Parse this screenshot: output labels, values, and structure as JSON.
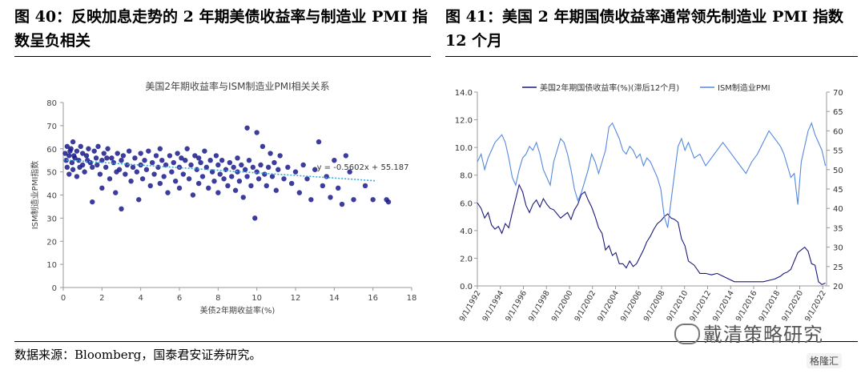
{
  "left_figure": {
    "title": "图 40：反映加息走势的 2 年期美债收益率与制造业 PMI 指数呈负相关"
  },
  "right_figure": {
    "title": "图 41：美国 2 年期国债收益率通常领先制造业 PMI 指数 12 个月"
  },
  "source": "数据来源：Bloomberg，国泰君安证券研究。",
  "watermark": "戴清策略研究",
  "corner_badge": "格隆汇",
  "chart_data": [
    {
      "type": "scatter",
      "title": "美国2年期收益率与ISM制造业PMI相关关系",
      "xlabel": "美债2年期收益率(%)",
      "ylabel": "ISM制造业PMI指数",
      "xlim": [
        0,
        18
      ],
      "ylim": [
        0,
        80
      ],
      "xticks": [
        0,
        2,
        4,
        6,
        8,
        10,
        12,
        14,
        16,
        18
      ],
      "yticks": [
        0,
        10,
        20,
        30,
        40,
        50,
        60,
        70,
        80
      ],
      "grid": false,
      "trendline": {
        "slope": -0.5602,
        "intercept": 55.187,
        "label": "y = -0.5602x + 55.187"
      },
      "point_color": "#1a1a8c",
      "points": [
        [
          0.1,
          58
        ],
        [
          0.15,
          55
        ],
        [
          0.2,
          61
        ],
        [
          0.2,
          52
        ],
        [
          0.3,
          57
        ],
        [
          0.3,
          49
        ],
        [
          0.4,
          60
        ],
        [
          0.45,
          54
        ],
        [
          0.5,
          63
        ],
        [
          0.5,
          51
        ],
        [
          0.6,
          56
        ],
        [
          0.7,
          59
        ],
        [
          0.7,
          48
        ],
        [
          0.8,
          55
        ],
        [
          0.9,
          61
        ],
        [
          1.0,
          53
        ],
        [
          1.0,
          58
        ],
        [
          1.1,
          50
        ],
        [
          1.2,
          57
        ],
        [
          1.3,
          60
        ],
        [
          1.4,
          54
        ],
        [
          1.5,
          52
        ],
        [
          1.5,
          37
        ],
        [
          1.6,
          59
        ],
        [
          1.7,
          56
        ],
        [
          1.8,
          61
        ],
        [
          1.9,
          49
        ],
        [
          2.0,
          55
        ],
        [
          2.0,
          43
        ],
        [
          2.1,
          58
        ],
        [
          2.2,
          52
        ],
        [
          2.3,
          60
        ],
        [
          2.4,
          47
        ],
        [
          2.5,
          56
        ],
        [
          2.6,
          54
        ],
        [
          2.7,
          41
        ],
        [
          2.8,
          58
        ],
        [
          2.9,
          51
        ],
        [
          3.0,
          55
        ],
        [
          3.0,
          34
        ],
        [
          3.1,
          57
        ],
        [
          3.2,
          49
        ],
        [
          3.3,
          53
        ],
        [
          3.4,
          59
        ],
        [
          3.5,
          46
        ],
        [
          3.6,
          52
        ],
        [
          3.7,
          56
        ],
        [
          3.8,
          50
        ],
        [
          3.9,
          38
        ],
        [
          4.0,
          58
        ],
        [
          4.0,
          53
        ],
        [
          4.1,
          47
        ],
        [
          4.2,
          55
        ],
        [
          4.3,
          51
        ],
        [
          4.4,
          59
        ],
        [
          4.5,
          44
        ],
        [
          4.6,
          54
        ],
        [
          4.7,
          49
        ],
        [
          4.8,
          57
        ],
        [
          4.9,
          52
        ],
        [
          5.0,
          45
        ],
        [
          5.0,
          60
        ],
        [
          5.1,
          55
        ],
        [
          5.2,
          48
        ],
        [
          5.3,
          53
        ],
        [
          5.4,
          41
        ],
        [
          5.5,
          57
        ],
        [
          5.6,
          50
        ],
        [
          5.7,
          54
        ],
        [
          5.8,
          46
        ],
        [
          5.9,
          58
        ],
        [
          6.0,
          52
        ],
        [
          6.0,
          43
        ],
        [
          6.1,
          56
        ],
        [
          6.2,
          49
        ],
        [
          6.3,
          55
        ],
        [
          6.4,
          60
        ],
        [
          6.5,
          47
        ],
        [
          6.6,
          53
        ],
        [
          6.7,
          40
        ],
        [
          6.8,
          57
        ],
        [
          6.9,
          51
        ],
        [
          7.0,
          45
        ],
        [
          7.0,
          56
        ],
        [
          7.1,
          54
        ],
        [
          7.2,
          48
        ],
        [
          7.3,
          59
        ],
        [
          7.4,
          52
        ],
        [
          7.5,
          43
        ],
        [
          7.6,
          55
        ],
        [
          7.7,
          50
        ],
        [
          7.8,
          46
        ],
        [
          7.9,
          57
        ],
        [
          8.0,
          53
        ],
        [
          8.0,
          41
        ],
        [
          8.1,
          49
        ],
        [
          8.2,
          55
        ],
        [
          8.3,
          47
        ],
        [
          8.4,
          51
        ],
        [
          8.5,
          44
        ],
        [
          8.6,
          54
        ],
        [
          8.7,
          48
        ],
        [
          8.8,
          52
        ],
        [
          8.9,
          42
        ],
        [
          9.0,
          56
        ],
        [
          9.0,
          50
        ],
        [
          9.1,
          46
        ],
        [
          9.2,
          53
        ],
        [
          9.3,
          39
        ],
        [
          9.4,
          51
        ],
        [
          9.5,
          69
        ],
        [
          9.5,
          48
        ],
        [
          9.6,
          55
        ],
        [
          9.7,
          44
        ],
        [
          9.8,
          52
        ],
        [
          9.9,
          30
        ],
        [
          10.0,
          50
        ],
        [
          10.0,
          67
        ],
        [
          10.1,
          47
        ],
        [
          10.2,
          53
        ],
        [
          10.3,
          61
        ],
        [
          10.4,
          49
        ],
        [
          10.5,
          44
        ],
        [
          10.6,
          52
        ],
        [
          10.7,
          58
        ],
        [
          10.8,
          48
        ],
        [
          10.9,
          54
        ],
        [
          11.0,
          42
        ],
        [
          11.1,
          51
        ],
        [
          11.2,
          57
        ],
        [
          11.4,
          47
        ],
        [
          11.6,
          52
        ],
        [
          11.8,
          45
        ],
        [
          12.0,
          50
        ],
        [
          12.2,
          41
        ],
        [
          12.4,
          53
        ],
        [
          12.6,
          47
        ],
        [
          12.8,
          38
        ],
        [
          13.0,
          51
        ],
        [
          13.2,
          63
        ],
        [
          13.4,
          44
        ],
        [
          13.6,
          48
        ],
        [
          13.8,
          39
        ],
        [
          14.0,
          55
        ],
        [
          14.2,
          43
        ],
        [
          14.4,
          36
        ],
        [
          14.6,
          57
        ],
        [
          14.8,
          50
        ],
        [
          15.0,
          38
        ],
        [
          15.6,
          44
        ],
        [
          16.0,
          38
        ],
        [
          16.7,
          38
        ],
        [
          16.8,
          37
        ],
        [
          0.35,
          59
        ],
        [
          0.55,
          57
        ],
        [
          0.85,
          52
        ],
        [
          1.25,
          55
        ],
        [
          1.75,
          53
        ],
        [
          2.25,
          56
        ],
        [
          2.75,
          50
        ]
      ]
    },
    {
      "type": "line",
      "legend_position": "top",
      "x_tick_labels": [
        "9/1/1992",
        "9/1/1994",
        "9/1/1996",
        "9/1/1998",
        "9/1/2000",
        "9/1/2002",
        "9/1/2004",
        "9/1/2006",
        "9/1/2008",
        "9/1/2010",
        "9/1/2012",
        "9/1/2014",
        "9/1/2016",
        "9/1/2018",
        "9/1/2020",
        "9/1/2022"
      ],
      "xlim": [
        1992.67,
        2023.0
      ],
      "y_left": {
        "min": 0,
        "max": 14,
        "ticks": [
          "0.0",
          "2.0",
          "4.0",
          "6.0",
          "8.0",
          "10.0",
          "12.0",
          "14.0"
        ]
      },
      "y_right": {
        "min": 20,
        "max": 70,
        "ticks": [
          "20",
          "25",
          "30",
          "35",
          "40",
          "45",
          "50",
          "55",
          "60",
          "65",
          "70"
        ]
      },
      "series": [
        {
          "name": "美国2年期国债收益率(%)(滞后12个月)",
          "axis": "left",
          "color": "#1a1a7a",
          "x": [
            1992.67,
            1993.0,
            1993.3,
            1993.6,
            1993.9,
            1994.2,
            1994.5,
            1994.8,
            1995.1,
            1995.4,
            1995.7,
            1996.0,
            1996.3,
            1996.6,
            1996.9,
            1997.2,
            1997.5,
            1997.8,
            1998.1,
            1998.4,
            1998.7,
            1999.0,
            1999.3,
            1999.6,
            1999.9,
            2000.2,
            2000.5,
            2000.8,
            2001.1,
            2001.4,
            2001.7,
            2002.0,
            2002.3,
            2002.6,
            2002.9,
            2003.2,
            2003.5,
            2003.8,
            2004.1,
            2004.4,
            2004.7,
            2005.0,
            2005.3,
            2005.6,
            2005.9,
            2006.2,
            2006.5,
            2006.8,
            2007.1,
            2007.4,
            2007.7,
            2008.0,
            2008.3,
            2008.6,
            2008.9,
            2009.2,
            2009.5,
            2009.8,
            2010.1,
            2010.4,
            2010.7,
            2011.0,
            2011.5,
            2012.0,
            2012.5,
            2013.0,
            2013.5,
            2014.0,
            2014.5,
            2015.0,
            2015.5,
            2016.0,
            2016.5,
            2017.0,
            2017.5,
            2018.0,
            2018.5,
            2019.0,
            2019.3,
            2019.6,
            2019.9,
            2020.2,
            2020.5,
            2020.8,
            2021.1,
            2021.4,
            2021.7,
            2022.0,
            2022.3,
            2022.6,
            2022.9
          ],
          "y": [
            6.0,
            5.6,
            4.9,
            5.3,
            4.4,
            4.1,
            4.3,
            3.8,
            4.5,
            4.2,
            5.3,
            6.3,
            7.3,
            6.8,
            5.8,
            5.3,
            5.9,
            6.2,
            5.7,
            6.3,
            5.9,
            5.6,
            5.5,
            5.2,
            4.9,
            5.1,
            5.3,
            4.8,
            5.5,
            5.9,
            6.6,
            6.8,
            6.2,
            5.7,
            5.0,
            4.2,
            3.8,
            2.6,
            2.9,
            2.2,
            2.4,
            1.6,
            1.6,
            1.3,
            1.8,
            1.4,
            1.6,
            2.1,
            2.6,
            3.2,
            3.6,
            4.1,
            4.5,
            4.7,
            5.0,
            5.2,
            4.9,
            4.8,
            4.6,
            3.4,
            2.9,
            1.8,
            1.5,
            0.9,
            0.9,
            0.8,
            0.9,
            0.7,
            0.5,
            0.3,
            0.3,
            0.3,
            0.3,
            0.3,
            0.3,
            0.4,
            0.5,
            0.7,
            0.9,
            1.0,
            1.2,
            1.8,
            2.4,
            2.6,
            2.8,
            2.5,
            1.6,
            1.5,
            0.3,
            0.1,
            0.2
          ]
        },
        {
          "name": "ISM制造业PMI",
          "axis": "right",
          "color": "#5588dd",
          "x": [
            1992.67,
            1993.0,
            1993.3,
            1993.6,
            1993.9,
            1994.2,
            1994.5,
            1994.8,
            1995.1,
            1995.4,
            1995.7,
            1996.0,
            1996.3,
            1996.6,
            1996.9,
            1997.2,
            1997.5,
            1997.8,
            1998.1,
            1998.4,
            1998.7,
            1999.0,
            1999.3,
            1999.6,
            1999.9,
            2000.2,
            2000.5,
            2000.8,
            2001.1,
            2001.4,
            2001.7,
            2002.0,
            2002.3,
            2002.6,
            2002.9,
            2003.2,
            2003.5,
            2003.8,
            2004.1,
            2004.4,
            2004.7,
            2005.0,
            2005.3,
            2005.6,
            2005.9,
            2006.2,
            2006.5,
            2006.8,
            2007.1,
            2007.4,
            2007.7,
            2008.0,
            2008.3,
            2008.6,
            2008.9,
            2009.2,
            2009.5,
            2009.8,
            2010.1,
            2010.4,
            2010.7,
            2011.0,
            2011.5,
            2012.0,
            2012.5,
            2013.0,
            2013.5,
            2014.0,
            2014.5,
            2015.0,
            2015.5,
            2016.0,
            2016.5,
            2017.0,
            2017.5,
            2018.0,
            2018.5,
            2019.0,
            2019.3,
            2019.6,
            2019.9,
            2020.2,
            2020.5,
            2020.8,
            2021.1,
            2021.4,
            2021.7,
            2022.0,
            2022.3,
            2022.6,
            2022.9
          ],
          "y": [
            52,
            54,
            50,
            53,
            55,
            57,
            58,
            59,
            57,
            53,
            48,
            46,
            50,
            53,
            54,
            56,
            55,
            57,
            54,
            50,
            48,
            46,
            52,
            55,
            58,
            57,
            54,
            50,
            45,
            42,
            44,
            47,
            50,
            54,
            52,
            49,
            52,
            55,
            61,
            62,
            60,
            58,
            55,
            54,
            56,
            55,
            53,
            54,
            51,
            53,
            52,
            50,
            48,
            45,
            38,
            35,
            42,
            49,
            56,
            58,
            55,
            57,
            53,
            54,
            51,
            53,
            55,
            57,
            55,
            53,
            51,
            49,
            52,
            54,
            57,
            60,
            58,
            56,
            54,
            51,
            48,
            49,
            41,
            52,
            56,
            60,
            62,
            59,
            57,
            55,
            51
          ]
        }
      ]
    }
  ]
}
